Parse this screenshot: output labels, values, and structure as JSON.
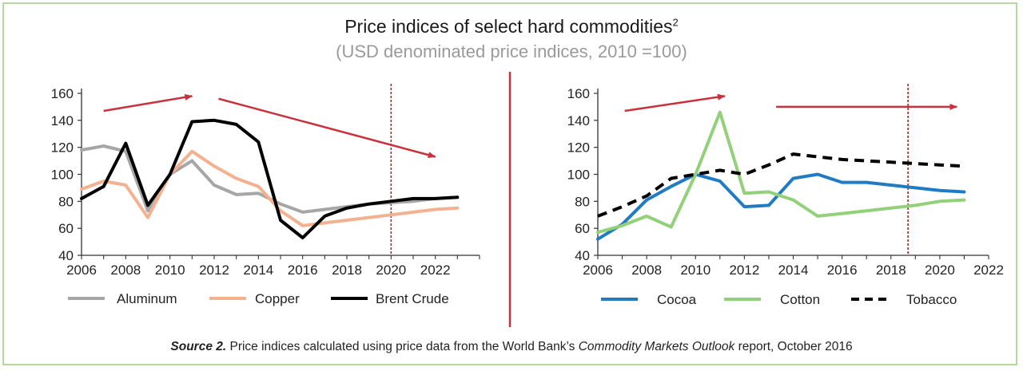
{
  "header": {
    "title": "Price indices of select hard commodities",
    "title_sup": "2",
    "subtitle": "(USD denominated price indices, 2010 =100)"
  },
  "source": {
    "label": "Source 2.",
    "text_before": "Price indices calculated using price data from the World Bank’s",
    "report_name": "Commodity Markets Outlook",
    "text_after": "report, October 2016"
  },
  "colors": {
    "aluminum": "#a6a6a6",
    "copper": "#f4b190",
    "brent": "#000000",
    "cocoa": "#1f7bc4",
    "cotton": "#92d07a",
    "tobacco": "#000000",
    "arrow": "#c8323c",
    "divider": "#c8323c",
    "forecast_line": "#9b2d2d"
  },
  "chart_data": [
    {
      "type": "line",
      "x_ticks": [
        2006,
        2008,
        2010,
        2012,
        2014,
        2016,
        2018,
        2020,
        2022
      ],
      "y_ticks": [
        40,
        60,
        80,
        100,
        120,
        140,
        160
      ],
      "xlim": [
        2006,
        2024
      ],
      "ylim": [
        40,
        160
      ],
      "forecast_from": 2020,
      "series": [
        {
          "name": "Aluminum",
          "color_key": "aluminum",
          "dash": false,
          "x": [
            2006,
            2007,
            2008,
            2009,
            2010,
            2011,
            2012,
            2013,
            2014,
            2015,
            2016,
            2017,
            2018,
            2019,
            2020,
            2021,
            2022,
            2023
          ],
          "y": [
            118,
            121,
            117,
            73,
            100,
            110,
            92,
            85,
            86,
            78,
            72,
            74,
            76,
            78,
            79,
            80,
            82,
            83
          ]
        },
        {
          "name": "Copper",
          "color_key": "copper",
          "dash": false,
          "x": [
            2006,
            2007,
            2008,
            2009,
            2010,
            2011,
            2012,
            2013,
            2014,
            2015,
            2016,
            2017,
            2018,
            2019,
            2020,
            2021,
            2022,
            2023
          ],
          "y": [
            89,
            95,
            92,
            68,
            100,
            117,
            106,
            97,
            91,
            73,
            62,
            64,
            66,
            68,
            70,
            72,
            74,
            75
          ]
        },
        {
          "name": "Brent Crude",
          "color_key": "brent",
          "dash": false,
          "x": [
            2006,
            2007,
            2008,
            2009,
            2010,
            2011,
            2012,
            2013,
            2014,
            2015,
            2016,
            2017,
            2018,
            2019,
            2020,
            2021,
            2022,
            2023
          ],
          "y": [
            82,
            91,
            123,
            77,
            100,
            139,
            140,
            137,
            124,
            66,
            53,
            69,
            75,
            78,
            80,
            82,
            82,
            83
          ]
        }
      ],
      "arrows": [
        {
          "from": [
            2007,
            147
          ],
          "to": [
            2011,
            158
          ]
        },
        {
          "from": [
            2012.2,
            156
          ],
          "to": [
            2022,
            113
          ]
        }
      ]
    },
    {
      "type": "line",
      "x_ticks": [
        2006,
        2008,
        2010,
        2012,
        2014,
        2016,
        2018,
        2020,
        2022
      ],
      "y_ticks": [
        40,
        60,
        80,
        100,
        120,
        140,
        160
      ],
      "xlim": [
        2006,
        2022
      ],
      "ylim": [
        40,
        160
      ],
      "forecast_from": 2018.7,
      "series": [
        {
          "name": "Cocoa",
          "color_key": "cocoa",
          "dash": false,
          "x": [
            2006,
            2007,
            2008,
            2009,
            2010,
            2011,
            2012,
            2013,
            2014,
            2015,
            2016,
            2017,
            2018,
            2019,
            2020,
            2021
          ],
          "y": [
            52,
            63,
            81,
            91,
            100,
            95,
            76,
            77,
            97,
            100,
            94,
            94,
            92,
            90,
            88,
            87
          ]
        },
        {
          "name": "Cotton",
          "color_key": "cotton",
          "dash": false,
          "x": [
            2006,
            2007,
            2008,
            2009,
            2010,
            2011,
            2012,
            2013,
            2014,
            2015,
            2016,
            2017,
            2018,
            2019,
            2020,
            2021
          ],
          "y": [
            57,
            62,
            69,
            61,
            100,
            146,
            86,
            87,
            81,
            69,
            71,
            73,
            75,
            77,
            80,
            81
          ]
        },
        {
          "name": "Tobacco",
          "color_key": "tobacco",
          "dash": true,
          "x": [
            2006,
            2007,
            2008,
            2009,
            2010,
            2011,
            2012,
            2013,
            2014,
            2015,
            2016,
            2017,
            2018,
            2019,
            2020,
            2021
          ],
          "y": [
            69,
            76,
            84,
            97,
            100,
            103,
            100,
            107,
            115,
            113,
            111,
            110,
            109,
            108,
            107,
            106
          ]
        }
      ],
      "arrows": [
        {
          "from": [
            2007.1,
            147
          ],
          "to": [
            2011.2,
            158
          ]
        },
        {
          "from": [
            2013.3,
            150
          ],
          "to": [
            2020.7,
            150
          ]
        }
      ]
    }
  ]
}
